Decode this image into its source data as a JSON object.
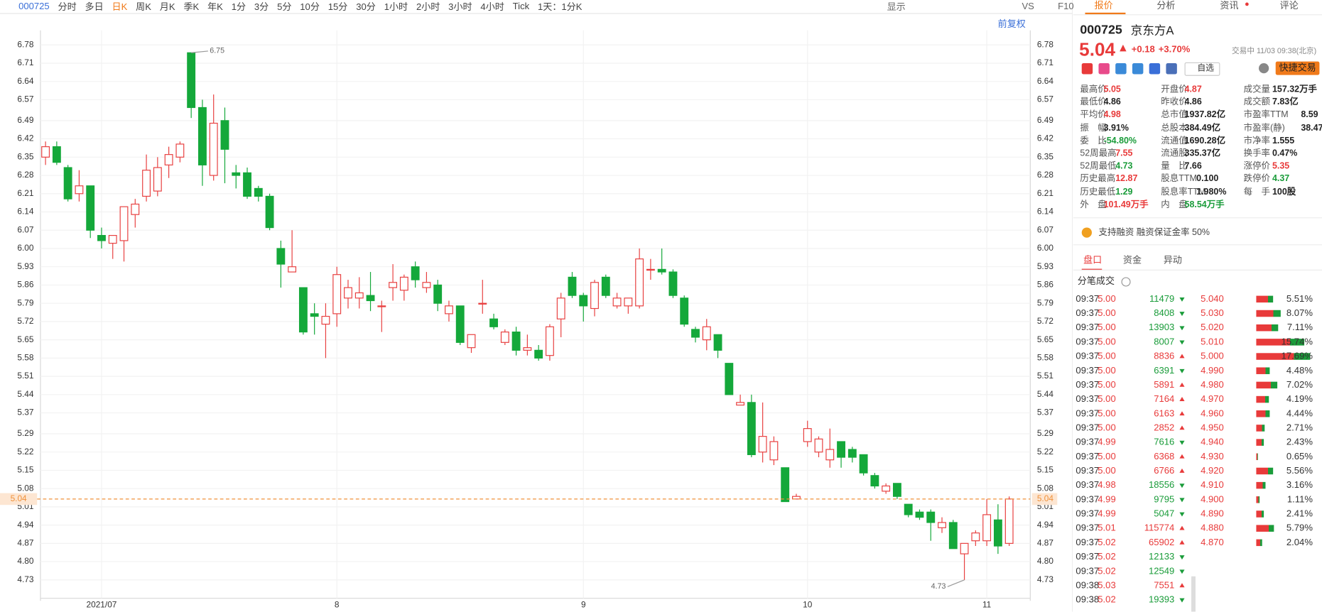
{
  "toolbar": {
    "code": "000725",
    "periods": [
      "分时",
      "多日",
      "日K",
      "周K",
      "月K",
      "季K",
      "年K",
      "1分",
      "3分",
      "5分",
      "10分",
      "15分",
      "30分",
      "1小时",
      "2小时",
      "3小时",
      "4小时",
      "Tick"
    ],
    "active": 2,
    "mode": "1天：1分K",
    "right": [
      "显示",
      "VS",
      "F10"
    ]
  },
  "chart_data": {
    "type": "candlestick",
    "note": "前复权",
    "open": [
      6.35,
      6.39,
      6.31,
      6.21,
      6.24,
      6.05,
      6.02,
      6.03,
      6.13,
      6.2,
      6.22,
      6.32,
      6.35,
      6.75,
      6.54,
      6.28,
      6.49,
      6.29,
      6.29,
      6.23,
      6.2,
      6.0,
      5.91,
      5.85,
      5.75,
      5.71,
      5.75,
      5.81,
      5.81,
      5.82,
      5.78,
      5.85,
      5.84,
      5.93,
      5.85,
      5.86,
      5.75,
      5.78,
      5.62,
      5.79,
      5.73,
      5.64,
      5.68,
      5.61,
      5.61,
      5.59,
      5.73,
      5.89,
      5.82,
      5.77,
      5.89,
      5.78,
      5.78,
      5.78,
      5.92,
      5.92,
      5.91,
      5.81,
      5.69,
      5.65,
      5.67,
      5.56,
      5.4,
      5.41,
      5.22,
      5.19,
      5.16,
      5.04,
      5.26,
      5.22,
      5.19,
      5.26,
      5.23,
      5.21,
      5.13,
      5.07,
      5.1,
      5.02,
      4.99,
      4.99,
      4.93,
      4.95,
      4.83,
      4.88,
      4.88,
      4.96,
      4.87
    ],
    "high": [
      6.41,
      6.41,
      6.32,
      6.3,
      6.24,
      6.08,
      6.05,
      6.16,
      6.19,
      6.36,
      6.35,
      6.39,
      6.41,
      6.75,
      6.57,
      6.59,
      6.54,
      6.32,
      6.31,
      6.24,
      6.21,
      6.03,
      6.07,
      5.85,
      5.79,
      5.79,
      5.93,
      5.88,
      5.89,
      5.91,
      5.8,
      5.94,
      5.9,
      5.95,
      5.91,
      5.88,
      5.8,
      5.78,
      5.67,
      5.88,
      5.75,
      5.69,
      5.7,
      5.67,
      5.63,
      5.71,
      5.83,
      5.91,
      5.83,
      5.88,
      5.9,
      5.83,
      5.81,
      6.0,
      5.96,
      6.0,
      5.92,
      5.82,
      5.7,
      5.73,
      5.67,
      5.56,
      5.44,
      5.44,
      5.41,
      5.28,
      5.16,
      5.06,
      5.34,
      5.28,
      5.31,
      5.26,
      5.24,
      5.21,
      5.14,
      5.1,
      5.1,
      5.02,
      5.0,
      5.0,
      4.97,
      4.96,
      4.87,
      4.92,
      5.04,
      5.02,
      5.05
    ],
    "low": [
      6.32,
      6.32,
      6.18,
      6.18,
      6.04,
      6.0,
      5.96,
      5.95,
      6.08,
      6.18,
      6.2,
      6.27,
      6.33,
      6.5,
      6.24,
      6.26,
      6.25,
      6.23,
      6.19,
      6.18,
      6.07,
      5.85,
      5.91,
      5.67,
      5.67,
      5.58,
      5.7,
      5.77,
      5.77,
      5.76,
      5.68,
      5.8,
      5.8,
      5.85,
      5.83,
      5.76,
      5.72,
      5.63,
      5.6,
      5.75,
      5.69,
      5.63,
      5.59,
      5.59,
      5.57,
      5.57,
      5.66,
      5.81,
      5.72,
      5.74,
      5.81,
      5.77,
      5.75,
      5.77,
      5.88,
      5.9,
      5.81,
      5.7,
      5.64,
      5.61,
      5.58,
      5.44,
      5.4,
      5.2,
      5.18,
      5.17,
      5.03,
      5.04,
      5.24,
      5.2,
      5.16,
      5.16,
      5.18,
      5.13,
      5.08,
      5.06,
      5.04,
      4.97,
      4.96,
      4.88,
      4.91,
      4.85,
      4.73,
      4.86,
      4.86,
      4.83,
      4.86
    ],
    "close": [
      6.39,
      6.33,
      6.19,
      6.24,
      6.07,
      6.03,
      6.05,
      6.16,
      6.17,
      6.3,
      6.31,
      6.36,
      6.4,
      6.54,
      6.32,
      6.48,
      6.38,
      6.28,
      6.2,
      6.2,
      6.08,
      5.94,
      5.93,
      5.68,
      5.74,
      5.74,
      5.9,
      5.85,
      5.83,
      5.8,
      5.78,
      5.87,
      5.89,
      5.88,
      5.87,
      5.79,
      5.78,
      5.64,
      5.67,
      5.79,
      5.7,
      5.68,
      5.61,
      5.62,
      5.58,
      5.7,
      5.81,
      5.82,
      5.78,
      5.87,
      5.82,
      5.81,
      5.81,
      5.96,
      5.92,
      5.91,
      5.82,
      5.71,
      5.66,
      5.7,
      5.61,
      5.44,
      5.41,
      5.21,
      5.28,
      5.26,
      5.03,
      5.05,
      5.31,
      5.27,
      5.23,
      5.2,
      5.2,
      5.14,
      5.09,
      5.09,
      5.05,
      4.98,
      4.97,
      4.95,
      4.95,
      4.85,
      4.87,
      4.91,
      4.98,
      4.86,
      5.04
    ],
    "up_color": "#e84040",
    "down_color": "#14a83a",
    "ylim": [
      4.65,
      6.81
    ],
    "yticks": [
      {
        "value": 6.78,
        "label": "6.78"
      },
      {
        "value": 6.71,
        "label": "6.71"
      },
      {
        "value": 6.64,
        "label": "6.64"
      },
      {
        "value": 6.57,
        "label": "6.57"
      },
      {
        "value": 6.49,
        "label": "6.49"
      },
      {
        "value": 6.42,
        "label": "6.42"
      },
      {
        "value": 6.35,
        "label": "6.35"
      },
      {
        "value": 6.28,
        "label": "6.28"
      },
      {
        "value": 6.21,
        "label": "6.21"
      },
      {
        "value": 6.14,
        "label": "6.14"
      },
      {
        "value": 6.07,
        "label": "6.07"
      },
      {
        "value": 6.0,
        "label": "6.00"
      },
      {
        "value": 5.93,
        "label": "5.93"
      },
      {
        "value": 5.86,
        "label": "5.86"
      },
      {
        "value": 5.79,
        "label": "5.79"
      },
      {
        "value": 5.72,
        "label": "5.72"
      },
      {
        "value": 5.65,
        "label": "5.65"
      },
      {
        "value": 5.58,
        "label": "5.58"
      },
      {
        "value": 5.51,
        "label": "5.51"
      },
      {
        "value": 5.44,
        "label": "5.44"
      },
      {
        "value": 5.37,
        "label": "5.37"
      },
      {
        "value": 5.29,
        "label": "5.29"
      },
      {
        "value": 5.22,
        "label": "5.22"
      },
      {
        "value": 5.15,
        "label": "5.15"
      },
      {
        "value": 5.08,
        "label": "5.08"
      },
      {
        "value": 5.01,
        "label": "5.01"
      },
      {
        "value": 4.94,
        "label": "4.94"
      },
      {
        "value": 4.87,
        "label": "4.87"
      },
      {
        "value": 4.8,
        "label": "4.80"
      },
      {
        "value": 4.73,
        "label": "4.73"
      }
    ],
    "xticks": [
      {
        "value": 5,
        "label": "2021/07"
      },
      {
        "value": 26,
        "label": "8"
      },
      {
        "value": 48,
        "label": "9"
      },
      {
        "value": 68,
        "label": "10"
      },
      {
        "value": 84,
        "label": "11"
      }
    ],
    "annotations": [
      {
        "index": 13,
        "value": 6.75
      },
      {
        "index": 82,
        "value": 4.73
      }
    ],
    "current_price": 5.04,
    "current_color": "#f0913a",
    "grid": true
  },
  "quote": {
    "tabs": [
      "报价",
      "分析",
      "资讯",
      "评论"
    ],
    "code": "000725",
    "name": "京东方A",
    "price": "5.04",
    "change": "+0.18",
    "pct": "+3.70%",
    "status": "交易中 11/03 09:38(北京)",
    "watch": "自选",
    "trade": "快捷交易",
    "stats": [
      [
        {
          "label": "最高价",
          "value": "5.05",
          "color": "#e83a3a"
        },
        {
          "label": "开盘价",
          "value": "4.87",
          "color": "#e83a3a"
        },
        {
          "label": "成交量",
          "value": "157.32万手"
        }
      ],
      [
        {
          "label": "最低价",
          "value": "4.86"
        },
        {
          "label": "昨收价",
          "value": "4.86"
        },
        {
          "label": "成交额",
          "value": "7.83亿"
        }
      ],
      [
        {
          "label": "平均价",
          "value": "4.98",
          "color": "#e83a3a"
        },
        {
          "label": "总市值",
          "value": "1937.82亿"
        },
        {
          "label": "市盈率TTM",
          "value": "8.59"
        }
      ],
      [
        {
          "label": "振　幅",
          "value": "3.91%"
        },
        {
          "label": "总股本",
          "value": "384.49亿"
        },
        {
          "label": "市盈率(静)",
          "value": "38.47"
        }
      ],
      [
        {
          "label": "委　比",
          "value": "-54.80%",
          "color": "#1a9c3a"
        },
        {
          "label": "流通值",
          "value": "1690.28亿"
        },
        {
          "label": "市净率",
          "value": "1.555"
        }
      ],
      [
        {
          "label": "52周最高",
          "value": "7.55",
          "color": "#e83a3a"
        },
        {
          "label": "流通股",
          "value": "335.37亿"
        },
        {
          "label": "换手率",
          "value": "0.47%"
        }
      ],
      [
        {
          "label": "52周最低",
          "value": "4.73",
          "color": "#1a9c3a"
        },
        {
          "label": "量　比",
          "value": "7.66"
        },
        {
          "label": "涨停价",
          "value": "5.35",
          "color": "#e83a3a"
        }
      ],
      [
        {
          "label": "历史最高",
          "value": "12.87",
          "color": "#e83a3a"
        },
        {
          "label": "股息TTM",
          "value": "0.100"
        },
        {
          "label": "跌停价",
          "value": "4.37",
          "color": "#1a9c3a"
        }
      ],
      [
        {
          "label": "历史最低",
          "value": "1.29",
          "color": "#1a9c3a"
        },
        {
          "label": "股息率TTM",
          "value": "1.980%"
        },
        {
          "label": "每　手",
          "value": "100股"
        }
      ],
      [
        {
          "label": "外　盘",
          "value": "101.49万手",
          "color": "#e83a3a"
        },
        {
          "label": "内　盘",
          "value": "58.54万手",
          "color": "#1a9c3a"
        }
      ]
    ],
    "margin": "支持融资 融资保证金率 50%",
    "subtabs": [
      "盘口",
      "资金",
      "异动"
    ],
    "trades_title": "分笔成交"
  },
  "trades": [
    {
      "t": "09:37",
      "p": "5.00",
      "v": 11479,
      "d": "down"
    },
    {
      "t": "09:37",
      "p": "5.00",
      "v": 8408,
      "d": "down"
    },
    {
      "t": "09:37",
      "p": "5.00",
      "v": 13903,
      "d": "down"
    },
    {
      "t": "09:37",
      "p": "5.00",
      "v": 8007,
      "d": "down"
    },
    {
      "t": "09:37",
      "p": "5.00",
      "v": 8836,
      "d": "up"
    },
    {
      "t": "09:37",
      "p": "5.00",
      "v": 6391,
      "d": "down"
    },
    {
      "t": "09:37",
      "p": "5.00",
      "v": 5891,
      "d": "up"
    },
    {
      "t": "09:37",
      "p": "5.00",
      "v": 7164,
      "d": "up"
    },
    {
      "t": "09:37",
      "p": "5.00",
      "v": 6163,
      "d": "up"
    },
    {
      "t": "09:37",
      "p": "5.00",
      "v": 2852,
      "d": "up"
    },
    {
      "t": "09:37",
      "p": "4.99",
      "v": 7616,
      "d": "down"
    },
    {
      "t": "09:37",
      "p": "5.00",
      "v": 6368,
      "d": "up"
    },
    {
      "t": "09:37",
      "p": "5.00",
      "v": 6766,
      "d": "up"
    },
    {
      "t": "09:37",
      "p": "4.98",
      "v": 18556,
      "d": "down"
    },
    {
      "t": "09:37",
      "p": "4.99",
      "v": 9795,
      "d": "down"
    },
    {
      "t": "09:37",
      "p": "4.99",
      "v": 5047,
      "d": "down"
    },
    {
      "t": "09:37",
      "p": "5.01",
      "v": 115774,
      "d": "up"
    },
    {
      "t": "09:37",
      "p": "5.02",
      "v": 65902,
      "d": "up"
    },
    {
      "t": "09:37",
      "p": "5.02",
      "v": 12133,
      "d": "down"
    },
    {
      "t": "09:37",
      "p": "5.02",
      "v": 12549,
      "d": "down"
    },
    {
      "t": "09:38",
      "p": "5.03",
      "v": 7551,
      "d": "up"
    },
    {
      "t": "09:38",
      "p": "5.02",
      "v": 19393,
      "d": "down"
    }
  ],
  "book": {
    "prices": [
      "5.040",
      "5.030",
      "5.020",
      "5.010",
      "5.000",
      "4.990",
      "4.980",
      "4.970",
      "4.960",
      "4.950",
      "4.940",
      "4.930",
      "4.920",
      "4.910",
      "4.900",
      "4.890",
      "4.880",
      "4.870"
    ],
    "values": [
      5.51,
      8.07,
      7.11,
      15.74,
      17.69,
      4.48,
      7.02,
      4.19,
      4.44,
      2.71,
      2.43,
      0.65,
      5.56,
      3.16,
      1.11,
      2.41,
      5.79,
      2.04
    ],
    "value_labels": [
      "5.51%",
      "8.07%",
      "7.11%",
      "15.74%",
      "17.69%",
      "4.48%",
      "7.02%",
      "4.19%",
      "4.44%",
      "2.71%",
      "2.43%",
      "0.65%",
      "5.56%",
      "3.16%",
      "1.11%",
      "2.41%",
      "5.79%",
      "2.04%"
    ]
  }
}
